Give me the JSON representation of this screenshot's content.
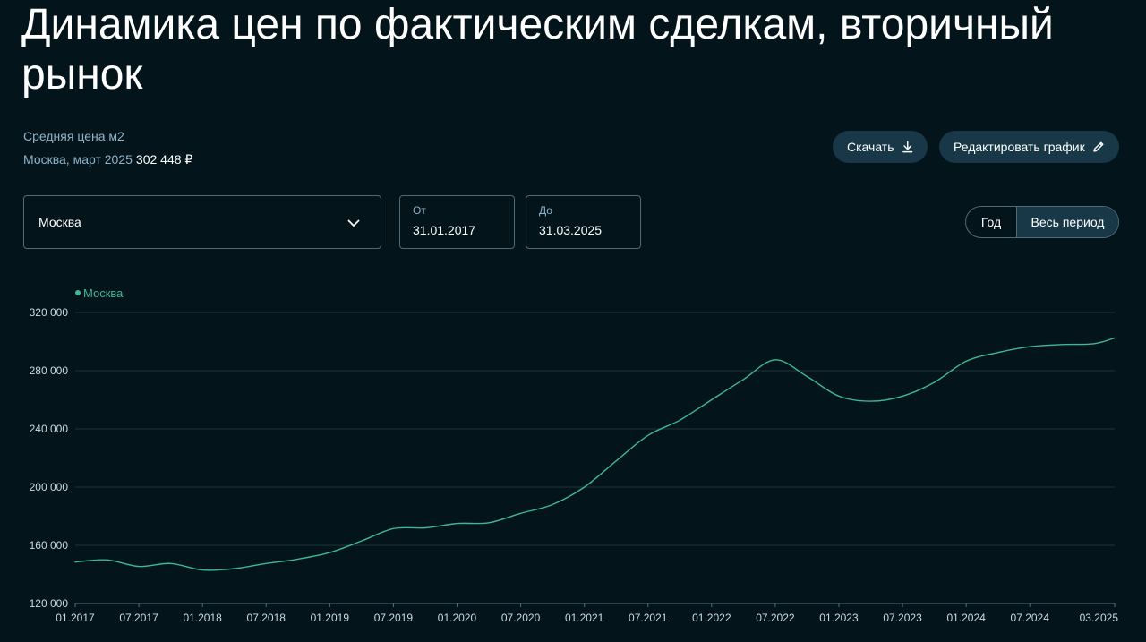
{
  "title": "Динамика цен по фактическим сделкам, вторичный рынок",
  "summary": {
    "metric_label": "Средняя цена м2",
    "region_period": "Москва, март 2025",
    "price": "302 448 ₽"
  },
  "buttons": {
    "download": "Скачать",
    "edit": "Редактировать график"
  },
  "filters": {
    "region": "Москва",
    "from_label": "От",
    "from_value": "31.01.2017",
    "to_label": "До",
    "to_value": "31.03.2025"
  },
  "period_toggle": {
    "year": "Год",
    "all": "Весь период",
    "selected": "all"
  },
  "colors": {
    "background": "#03141b",
    "line": "#3fb796",
    "grid": "#1f3540",
    "button_bg": "#183848",
    "muted_text": "#8fb4c8"
  },
  "icons": {
    "download": "download-icon",
    "edit": "pencil-icon",
    "dropdown": "chevron-down-icon"
  },
  "chart_data": {
    "type": "line",
    "legend": "Москва",
    "legend_placement": "top-left",
    "grid": true,
    "ylim": [
      120000,
      320000
    ],
    "yticks": [
      120000,
      160000,
      200000,
      240000,
      280000,
      320000
    ],
    "ytick_labels": [
      "120 000",
      "160 000",
      "200 000",
      "240 000",
      "280 000",
      "320 000"
    ],
    "xticks": [
      "01.2017",
      "07.2017",
      "01.2018",
      "07.2018",
      "01.2019",
      "07.2019",
      "01.2020",
      "07.2020",
      "01.2021",
      "07.2021",
      "01.2022",
      "07.2022",
      "01.2023",
      "07.2023",
      "01.2024",
      "07.2024",
      "03.2025"
    ],
    "series": [
      {
        "name": "Москва",
        "x": [
          "01.2017",
          "04.2017",
          "07.2017",
          "10.2017",
          "01.2018",
          "04.2018",
          "07.2018",
          "10.2018",
          "01.2019",
          "04.2019",
          "07.2019",
          "10.2019",
          "01.2020",
          "04.2020",
          "07.2020",
          "10.2020",
          "01.2021",
          "04.2021",
          "07.2021",
          "10.2021",
          "01.2022",
          "04.2022",
          "07.2022",
          "10.2022",
          "01.2023",
          "04.2023",
          "07.2023",
          "10.2023",
          "01.2024",
          "04.2024",
          "07.2024",
          "10.2024",
          "01.2025",
          "03.2025"
        ],
        "values": [
          148500,
          150000,
          145500,
          147500,
          143000,
          144000,
          147500,
          150500,
          155000,
          163000,
          171500,
          172000,
          175000,
          175500,
          182000,
          188000,
          200000,
          218000,
          235500,
          246000,
          260000,
          274000,
          287500,
          276000,
          262500,
          259000,
          262500,
          272000,
          286500,
          292500,
          296500,
          298000,
          298500,
          302448
        ]
      }
    ]
  }
}
